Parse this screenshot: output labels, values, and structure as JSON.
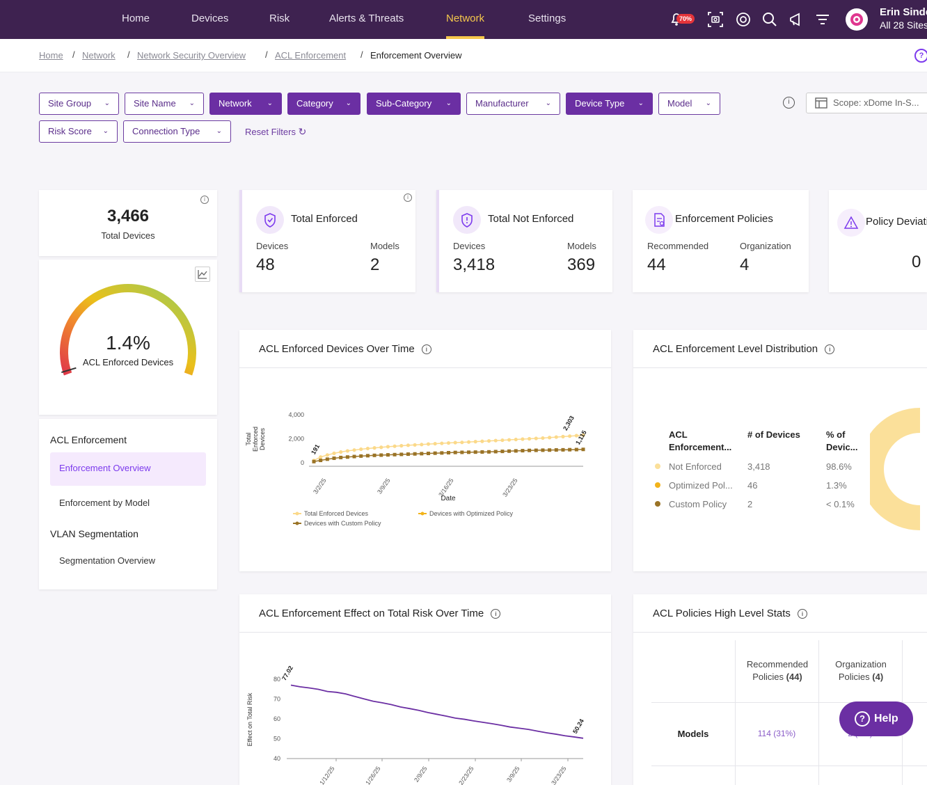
{
  "nav": {
    "items": [
      "Home",
      "Devices",
      "Risk",
      "Alerts & Threats",
      "Network",
      "Settings"
    ],
    "active": "Network",
    "badge": "70%",
    "user_name": "Erin Sindell",
    "user_sub": "All 28 Sites"
  },
  "breadcrumb": {
    "links": [
      "Home",
      "Network",
      "Network Security Overview",
      "ACL Enforcement"
    ],
    "current": "Enforcement Overview"
  },
  "filters": {
    "row1": [
      "Site Group",
      "Site Name",
      "Network",
      "Category",
      "Sub-Category",
      "Manufacturer",
      "Device Type",
      "Model"
    ],
    "row2": [
      "Risk Score",
      "Connection Type"
    ],
    "reset": "Reset Filters",
    "scope": "Scope: xDome In-S..."
  },
  "total_devices": {
    "value": "3,466",
    "label": "Total Devices"
  },
  "gauge": {
    "value": "1.4%",
    "label": "ACL Enforced Devices",
    "fraction": 0.014
  },
  "side_nav": {
    "section1": "ACL Enforcement",
    "items1": [
      "Enforcement Overview",
      "Enforcement by Model"
    ],
    "section2": "VLAN Segmentation",
    "items2": [
      "Segmentation Overview"
    ]
  },
  "stat_cards": {
    "enforced": {
      "title": "Total Enforced",
      "l1": "Devices",
      "v1": "48",
      "l2": "Models",
      "v2": "2"
    },
    "not_enforced": {
      "title": "Total Not Enforced",
      "l1": "Devices",
      "v1": "3,418",
      "l2": "Models",
      "v2": "369"
    },
    "policies": {
      "title": "Enforcement Policies",
      "l1": "Recommended",
      "v1": "44",
      "l2": "Organization",
      "v2": "4"
    },
    "deviations": {
      "title": "Policy Deviations",
      "v1": "0"
    }
  },
  "panels": {
    "over_time": "ACL Enforced Devices Over Time",
    "distribution": "ACL Enforcement Level Distribution",
    "risk": "ACL Enforcement Effect on Total Risk Over Time",
    "stats": "ACL Policies High Level Stats"
  },
  "distribution_table": {
    "headers": [
      "ACL Enforcement...",
      "# of Devices",
      "% of Devic..."
    ],
    "rows": [
      {
        "label": "Not Enforced",
        "count": "3,418",
        "pct": "98.6%",
        "color": "#fbe09a"
      },
      {
        "label": "Optimized Pol...",
        "count": "46",
        "pct": "1.3%",
        "color": "#f2b31a"
      },
      {
        "label": "Custom Policy",
        "count": "2",
        "pct": "< 0.1%",
        "color": "#9a7326"
      }
    ]
  },
  "stats_table": {
    "col1": "Recommended Policies",
    "col1_count": "(44)",
    "col2": "Organization Policies",
    "col2_count": "(4)",
    "row_label": "Models",
    "cell1": "114 (31%)",
    "cell2": "2 (0%)"
  },
  "help": "Help",
  "chart_data": [
    {
      "type": "line",
      "title": "ACL Enforced Devices Over Time",
      "xlabel": "Date",
      "ylabel": "Total Enforced Devices",
      "ylim": [
        0,
        4000
      ],
      "yticks": [
        "0",
        "2,000",
        "4,000"
      ],
      "xticks": [
        "3/2/25",
        "3/9/25",
        "3/16/25",
        "3/23/25"
      ],
      "annotations": [
        "191",
        "2,303",
        "1,115"
      ],
      "series": [
        {
          "name": "Total Enforced Devices",
          "color": "#fbd98a",
          "values": [
            191,
            480,
            650,
            790,
            900,
            990,
            1060,
            1130,
            1190,
            1240,
            1290,
            1340,
            1380,
            1420,
            1460,
            1490,
            1520,
            1560,
            1590,
            1620,
            1650,
            1680,
            1700,
            1730,
            1760,
            1790,
            1820,
            1850,
            1880,
            1910,
            1940,
            1970,
            2000,
            2030,
            2060,
            2100,
            2140,
            2180,
            2220,
            2260,
            2303
          ]
        },
        {
          "name": "Devices with Optimized Policy",
          "color": "#f2b31a",
          "values": []
        },
        {
          "name": "Devices with Custom Policy",
          "color": "#9a7326",
          "values": [
            100,
            200,
            300,
            380,
            440,
            480,
            520,
            560,
            590,
            620,
            640,
            660,
            680,
            700,
            720,
            740,
            760,
            780,
            800,
            820,
            840,
            860,
            870,
            880,
            890,
            900,
            910,
            930,
            950,
            970,
            990,
            1010,
            1030,
            1040,
            1050,
            1060,
            1070,
            1080,
            1090,
            1100,
            1115
          ]
        }
      ]
    },
    {
      "type": "pie",
      "title": "ACL Enforcement Level Distribution",
      "categories": [
        "Not Enforced",
        "Optimized Policy",
        "Custom Policy"
      ],
      "values": [
        3418,
        46,
        2
      ]
    },
    {
      "type": "line",
      "title": "ACL Enforcement Effect on Total Risk Over Time",
      "ylabel": "Effect on Total Risk",
      "ylim": [
        40,
        80
      ],
      "yticks": [
        "40",
        "50",
        "60",
        "70",
        "80"
      ],
      "xticks": [
        "1/12/25",
        "1/26/25",
        "2/9/25",
        "2/23/25",
        "3/9/25",
        "3/23/25"
      ],
      "annotations": [
        "77.02",
        "50.24"
      ],
      "series": [
        {
          "name": "Total Risk",
          "color": "#6b2fa3",
          "values": [
            77.02,
            76.2,
            75.6,
            74.9,
            73.8,
            73.4,
            72.6,
            71.3,
            70.1,
            68.9,
            68.1,
            67.2,
            66.0,
            65.2,
            64.3,
            63.2,
            62.3,
            61.4,
            60.4,
            59.8,
            59.0,
            58.3,
            57.6,
            56.8,
            55.9,
            55.3,
            54.7,
            53.8,
            53.0,
            52.3,
            51.5,
            50.9,
            50.24
          ]
        }
      ]
    }
  ]
}
